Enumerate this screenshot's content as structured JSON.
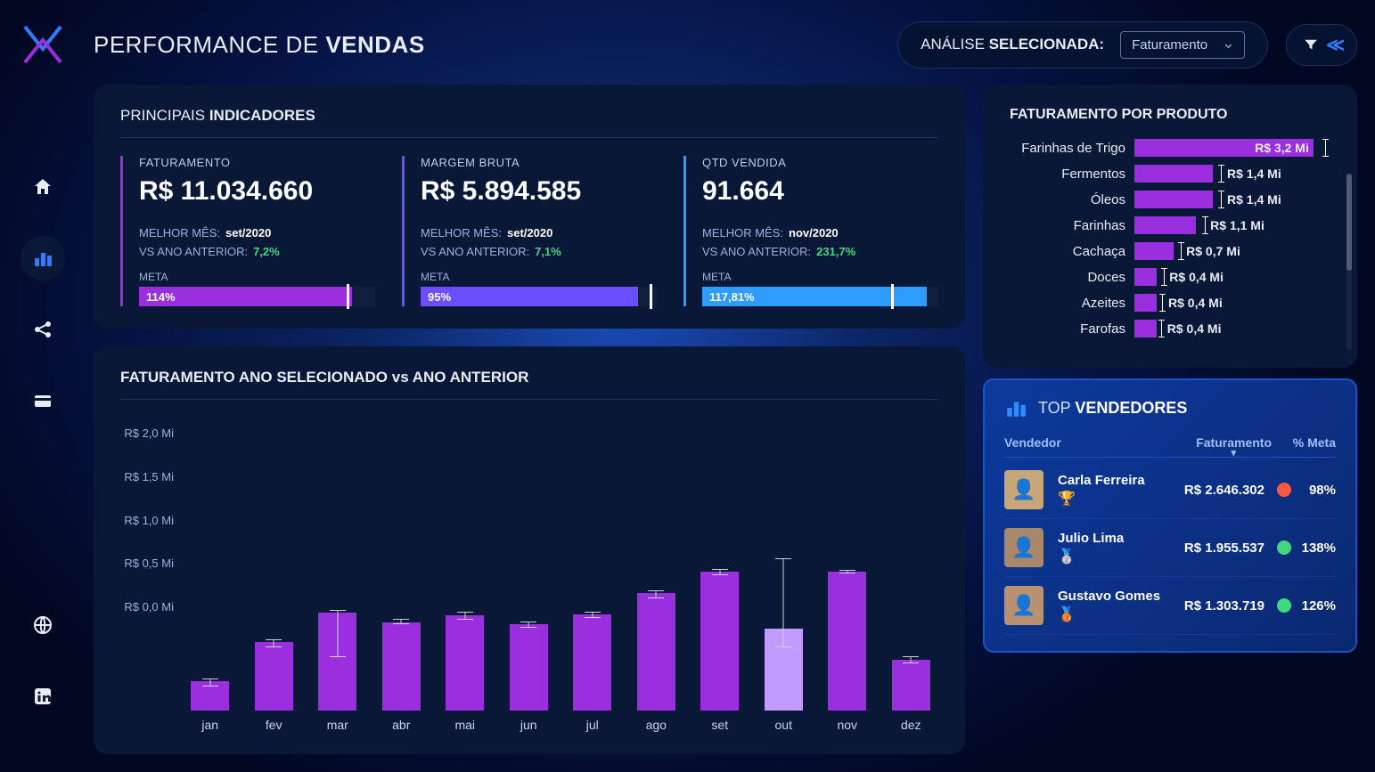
{
  "page": {
    "title_light": "PERFORMANCE DE ",
    "title_bold": "VENDAS"
  },
  "analysis": {
    "label_light": "ANÁLISE ",
    "label_bold": "SELECIONADA:",
    "selected": "Faturamento"
  },
  "colors": {
    "purple": "#9b2fe0",
    "purple_light": "#b77aff",
    "blue": "#2e9cff",
    "green_dot": "#3ed97f",
    "red_dot": "#ff5a3d",
    "kpi1_border": "#9b2fe0",
    "kpi2_border": "#6b4fff",
    "kpi3_border": "#2e9cff"
  },
  "indicators": {
    "title_light": "PRINCIPAIS ",
    "title_bold": "INDICADORES",
    "best_month_label": "MELHOR MÊS:",
    "vs_prev_label": "VS ANO ANTERIOR:",
    "meta_label": "META",
    "items": [
      {
        "label": "FATURAMENTO",
        "value": "R$ 11.034.660",
        "best_month": "set/2020",
        "vs_prev": "7,2%",
        "meta_pct_text": "114%",
        "meta_fill_pct": 90,
        "meta_mark_pct": 88,
        "fill_color": "#9b2fe0"
      },
      {
        "label": "MARGEM BRUTA",
        "value": "R$ 5.894.585",
        "best_month": "set/2020",
        "vs_prev": "7,1%",
        "meta_pct_text": "95%",
        "meta_fill_pct": 92,
        "meta_mark_pct": 97,
        "fill_color": "#6b4fff"
      },
      {
        "label": "QTD VENDIDA",
        "value": "91.664",
        "best_month": "nov/2020",
        "vs_prev": "231,7%",
        "meta_pct_text": "117,81%",
        "meta_fill_pct": 95,
        "meta_mark_pct": 80,
        "fill_color": "#2e9cff"
      }
    ]
  },
  "monthly_chart": {
    "title": "FATURAMENTO ANO SELECIONADO vs ANO ANTERIOR",
    "y_ticks": [
      "R$ 2,0 Mi",
      "R$ 1,5 Mi",
      "R$ 1,0 Mi",
      "R$ 0,5 Mi",
      "R$ 0,0 Mi"
    ],
    "y_max": 2.0,
    "months": [
      "jan",
      "fev",
      "mar",
      "abr",
      "mai",
      "jun",
      "jul",
      "ago",
      "set",
      "out",
      "nov",
      "dez"
    ],
    "bar_values": [
      0.3,
      0.7,
      1.0,
      0.9,
      0.97,
      0.88,
      0.98,
      1.2,
      1.42,
      0.84,
      1.42,
      0.52
    ],
    "bar_colors": [
      "#9b2fe0",
      "#9b2fe0",
      "#9b2fe0",
      "#9b2fe0",
      "#9b2fe0",
      "#9b2fe0",
      "#9b2fe0",
      "#9b2fe0",
      "#9b2fe0",
      "#c19bff",
      "#9b2fe0",
      "#9b2fe0"
    ],
    "err_low": [
      0.25,
      0.65,
      0.55,
      0.88,
      0.93,
      0.85,
      0.95,
      1.15,
      1.38,
      0.65,
      1.4,
      0.48
    ],
    "err_high": [
      0.32,
      0.72,
      1.02,
      0.93,
      1.0,
      0.9,
      1.0,
      1.22,
      1.44,
      1.55,
      1.43,
      0.55
    ]
  },
  "products": {
    "title": "FATURAMENTO POR PRODUTO",
    "max": 3.5,
    "bar_color": "#9b2fe0",
    "rows": [
      {
        "name": "Farinhas de Trigo",
        "value": 3.2,
        "label": "R$ 3,2 Mi",
        "err": 3.4,
        "inside": true
      },
      {
        "name": "Fermentos",
        "value": 1.4,
        "label": "R$ 1,4 Mi",
        "err": 1.55
      },
      {
        "name": "Óleos",
        "value": 1.4,
        "label": "R$ 1,4 Mi",
        "err": 1.55
      },
      {
        "name": "Farinhas",
        "value": 1.1,
        "label": "R$ 1,1 Mi",
        "err": 1.25
      },
      {
        "name": "Cachaça",
        "value": 0.7,
        "label": "R$ 0,7 Mi",
        "err": 0.82
      },
      {
        "name": "Doces",
        "value": 0.4,
        "label": "R$ 0,4 Mi",
        "err": 0.52
      },
      {
        "name": "Azeites",
        "value": 0.4,
        "label": "R$ 0,4 Mi",
        "err": 0.5
      },
      {
        "name": "Farofas",
        "value": 0.4,
        "label": "R$ 0,4 Mi",
        "err": 0.48
      }
    ]
  },
  "vendors": {
    "title_light": "TOP ",
    "title_bold": "VENDEDORES",
    "col_name": "Vendedor",
    "col_fat": "Faturamento",
    "col_meta": "% Meta",
    "rows": [
      {
        "name": "Carla Ferreira",
        "fat": "R$ 2.646.302",
        "meta": "98%",
        "dot": "#ff5a3d",
        "trophy": "🏆",
        "avatar_bg": "#c9a678"
      },
      {
        "name": "Julio Lima",
        "fat": "R$ 1.955.537",
        "meta": "138%",
        "dot": "#3ed97f",
        "trophy": "🥈",
        "avatar_bg": "#a8876a"
      },
      {
        "name": "Gustavo Gomes",
        "fat": "R$ 1.303.719",
        "meta": "126%",
        "dot": "#3ed97f",
        "trophy": "🥉",
        "avatar_bg": "#b89270"
      }
    ]
  }
}
